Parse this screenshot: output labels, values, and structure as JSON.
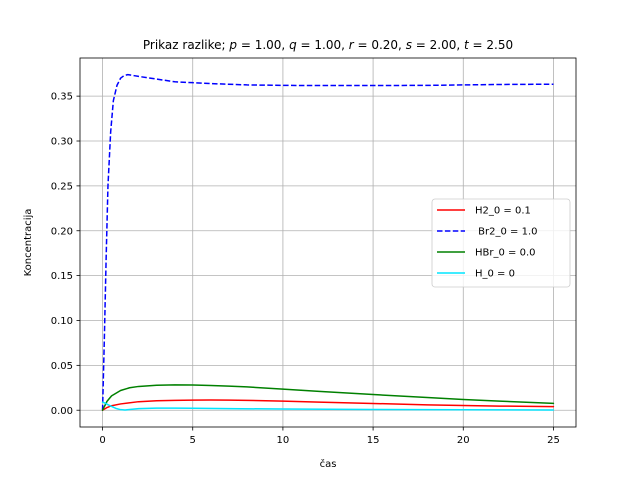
{
  "chart_data": {
    "type": "line",
    "title": "Prikaz razlike; p = 1.00, q = 1.00, r = 0.20, s = 2.00, t = 2.50",
    "title_parts": [
      {
        "t": "Prikaz razlike; ",
        "i": false
      },
      {
        "t": "p",
        "i": true
      },
      {
        "t": " = 1.00, ",
        "i": false
      },
      {
        "t": "q",
        "i": true
      },
      {
        "t": " = 1.00, ",
        "i": false
      },
      {
        "t": "r",
        "i": true
      },
      {
        "t": " = 0.20, ",
        "i": false
      },
      {
        "t": "s",
        "i": true
      },
      {
        "t": " = 2.00, ",
        "i": false
      },
      {
        "t": "t",
        "i": true
      },
      {
        "t": " = 2.50",
        "i": false
      }
    ],
    "xlabel": "čas",
    "ylabel": "Koncentracija",
    "xlim": [
      -1.25,
      26.25
    ],
    "ylim": [
      -0.0187,
      0.3925
    ],
    "xticks": [
      0,
      5,
      10,
      15,
      20,
      25
    ],
    "xtick_labels": [
      "0",
      "5",
      "10",
      "15",
      "20",
      "25"
    ],
    "yticks": [
      0.0,
      0.05,
      0.1,
      0.15,
      0.2,
      0.25,
      0.3,
      0.35
    ],
    "ytick_labels": [
      "0.00",
      "0.05",
      "0.10",
      "0.15",
      "0.20",
      "0.25",
      "0.30",
      "0.35"
    ],
    "grid": true,
    "legend_position": "center-right",
    "series": [
      {
        "name": "H2_0 = 0.1",
        "color": "#ff0000",
        "dash": "solid",
        "x": [
          0,
          0.25,
          0.5,
          1,
          2,
          3,
          4,
          5,
          6,
          7,
          8,
          10,
          12,
          15,
          18,
          20,
          22,
          25
        ],
        "y": [
          0.0,
          0.003,
          0.005,
          0.007,
          0.0095,
          0.0105,
          0.011,
          0.0113,
          0.0114,
          0.0113,
          0.011,
          0.0102,
          0.009,
          0.0075,
          0.006,
          0.0052,
          0.0046,
          0.004
        ]
      },
      {
        "name": " Br2_0 = 1.0",
        "color": "#0000ff",
        "dash": "dashed",
        "x": [
          0,
          0.1,
          0.2,
          0.3,
          0.45,
          0.6,
          0.8,
          1.0,
          1.2,
          1.4,
          1.7,
          2,
          3,
          4,
          5,
          6,
          8,
          10,
          12,
          15,
          18,
          20,
          22,
          25
        ],
        "y": [
          0.0,
          0.08,
          0.17,
          0.25,
          0.31,
          0.345,
          0.362,
          0.37,
          0.373,
          0.374,
          0.373,
          0.372,
          0.369,
          0.366,
          0.365,
          0.364,
          0.3625,
          0.362,
          0.3618,
          0.3618,
          0.362,
          0.3625,
          0.363,
          0.3633
        ]
      },
      {
        "name": "HBr_0 = 0.0",
        "color": "#008000",
        "dash": "solid",
        "x": [
          0,
          0.25,
          0.5,
          1,
          1.5,
          2,
          3,
          4,
          5,
          6,
          7,
          8,
          10,
          12,
          15,
          18,
          20,
          22,
          25
        ],
        "y": [
          0.0,
          0.01,
          0.016,
          0.022,
          0.025,
          0.0265,
          0.0278,
          0.0282,
          0.0281,
          0.0276,
          0.0268,
          0.026,
          0.0235,
          0.021,
          0.0175,
          0.0142,
          0.012,
          0.0102,
          0.0076
        ]
      },
      {
        "name": "H_0 = 0",
        "color": "#00e5ff",
        "dash": "solid",
        "x": [
          0,
          0.15,
          0.3,
          0.5,
          0.75,
          1.0,
          1.25,
          1.5,
          2,
          3,
          4,
          5,
          7,
          10,
          15,
          20,
          25
        ],
        "y": [
          0.009,
          0.0078,
          0.0062,
          0.0042,
          0.002,
          0.0006,
          0.0002,
          0.0008,
          0.0018,
          0.0024,
          0.0024,
          0.0022,
          0.0018,
          0.0013,
          0.0008,
          0.0005,
          0.0003
        ]
      }
    ]
  }
}
